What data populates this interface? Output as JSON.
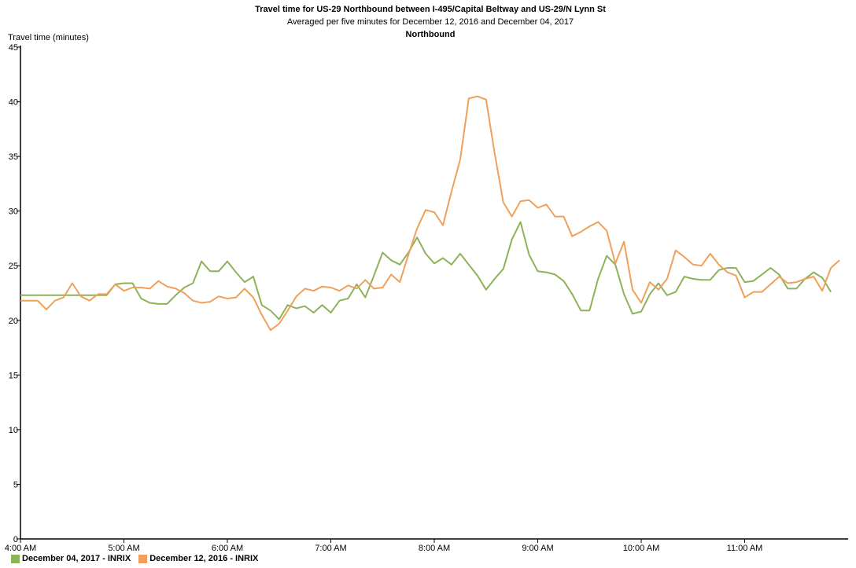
{
  "chart_data": {
    "type": "line",
    "title": "Travel time for US-29  Northbound between I-495/Capital Beltway and US-29/N Lynn St",
    "subtitle": "Averaged per five minutes for December 12, 2016 and December 04, 2017",
    "subtitle2": "Northbound",
    "ylabel": "Travel time (minutes)",
    "xlabel": "",
    "ylim": [
      0,
      45
    ],
    "y_ticks": [
      0,
      5,
      10,
      15,
      20,
      25,
      30,
      35,
      40,
      45
    ],
    "x_tick_labels": [
      "4:00 AM",
      "5:00 AM",
      "6:00 AM",
      "7:00 AM",
      "8:00 AM",
      "9:00 AM",
      "10:00 AM",
      "11:00 AM"
    ],
    "interval_minutes": 5,
    "grid": false,
    "legend_position": "bottom-left",
    "series": [
      {
        "name": "December 04, 2017 - INRIX",
        "color": "#8db35a",
        "values": [
          22.3,
          22.3,
          22.3,
          22.3,
          22.3,
          22.3,
          22.3,
          22.3,
          22.3,
          22.3,
          22.3,
          23.3,
          23.4,
          23.4,
          22.0,
          21.6,
          21.5,
          21.5,
          22.3,
          23.0,
          23.4,
          25.4,
          24.5,
          24.5,
          25.4,
          24.4,
          23.5,
          24.0,
          21.4,
          20.9,
          20.1,
          21.4,
          21.1,
          21.3,
          20.7,
          21.4,
          20.7,
          21.8,
          22.0,
          23.3,
          22.1,
          24.1,
          26.2,
          25.5,
          25.1,
          26.2,
          27.6,
          26.1,
          25.2,
          25.7,
          25.1,
          26.1,
          25.1,
          24.1,
          22.8,
          23.8,
          24.7,
          27.4,
          29.0,
          26.0,
          24.5,
          24.4,
          24.2,
          23.6,
          22.4,
          20.9,
          20.9,
          23.8,
          25.9,
          25.1,
          22.4,
          20.6,
          20.8,
          22.4,
          23.4,
          22.3,
          22.6,
          24.0,
          23.8,
          23.7,
          23.7,
          24.6,
          24.8,
          24.8,
          23.5,
          23.6,
          24.2,
          24.8,
          24.2,
          22.9,
          22.9,
          23.8,
          24.4,
          23.9,
          22.6
        ]
      },
      {
        "name": "December 12, 2016 - INRIX",
        "color": "#f0a05a",
        "values": [
          21.8,
          21.8,
          21.8,
          21.0,
          21.8,
          22.1,
          23.4,
          22.2,
          21.8,
          22.4,
          22.4,
          23.3,
          22.7,
          23.0,
          23.0,
          22.9,
          23.6,
          23.1,
          22.9,
          22.5,
          21.8,
          21.6,
          21.7,
          22.2,
          22.0,
          22.1,
          22.9,
          22.1,
          20.5,
          19.1,
          19.7,
          20.9,
          22.2,
          22.9,
          22.7,
          23.1,
          23.0,
          22.7,
          23.2,
          22.9,
          23.7,
          22.9,
          23.0,
          24.2,
          23.5,
          26.0,
          28.4,
          30.1,
          29.9,
          28.7,
          31.8,
          34.7,
          40.3,
          40.5,
          40.2,
          35.3,
          30.8,
          29.5,
          30.9,
          31.0,
          30.3,
          30.6,
          29.5,
          29.5,
          27.7,
          28.1,
          28.6,
          29.0,
          28.2,
          25.2,
          27.2,
          22.8,
          21.6,
          23.5,
          22.8,
          23.8,
          26.4,
          25.8,
          25.1,
          25.0,
          26.1,
          25.1,
          24.4,
          24.1,
          22.1,
          22.6,
          22.6,
          23.3,
          24.0,
          23.4,
          23.5,
          23.8,
          24.0,
          22.7,
          24.8,
          25.5
        ]
      }
    ]
  }
}
